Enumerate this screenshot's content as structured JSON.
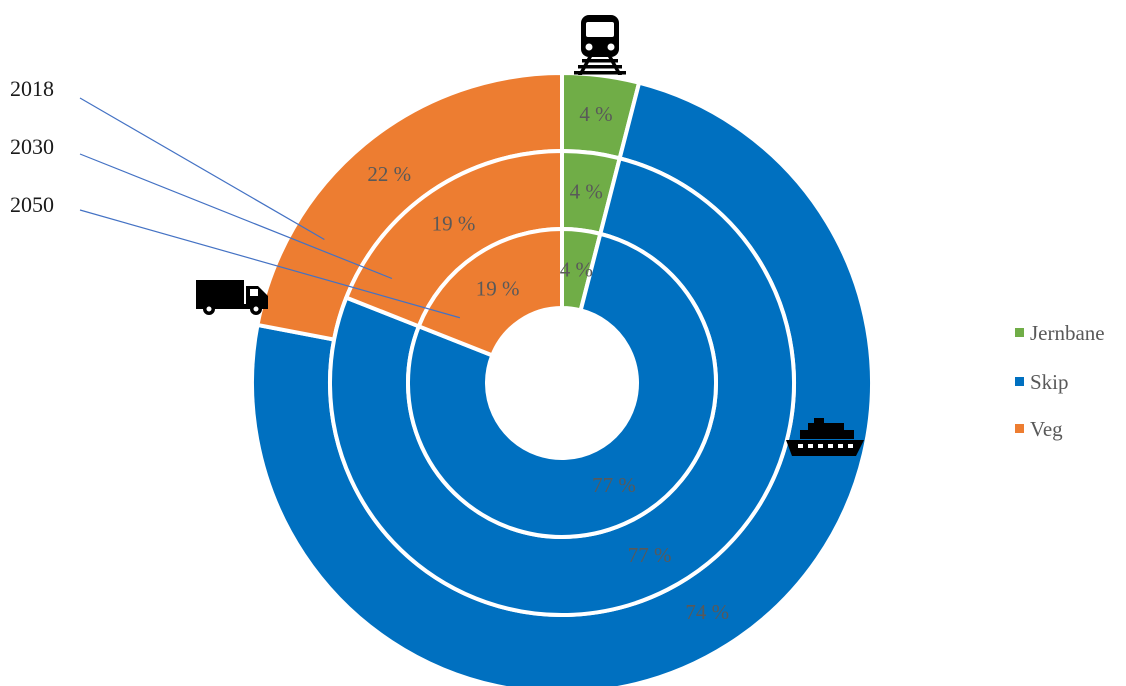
{
  "chart_data": {
    "type": "doughnut",
    "categories": [
      "Jernbane",
      "Skip",
      "Veg"
    ],
    "series": [
      {
        "name": "2018",
        "values": [
          4,
          74,
          22
        ],
        "labels": [
          "4 %",
          "74 %",
          "22 %"
        ]
      },
      {
        "name": "2030",
        "values": [
          4,
          77,
          19
        ],
        "labels": [
          "4 %",
          "77 %",
          "19 %"
        ]
      },
      {
        "name": "2050",
        "values": [
          4,
          77,
          19
        ],
        "labels": [
          "4 %",
          "77 %",
          "19 %"
        ]
      }
    ],
    "colors": {
      "Jernbane": "#70ad47",
      "Skip": "#0070c0",
      "Veg": "#ed7d31"
    },
    "legend": {
      "position": "right",
      "entries": [
        "Jernbane",
        "Skip",
        "Veg"
      ]
    },
    "icons": {
      "Jernbane": "train-icon",
      "Skip": "ship-icon",
      "Veg": "truck-icon"
    }
  }
}
